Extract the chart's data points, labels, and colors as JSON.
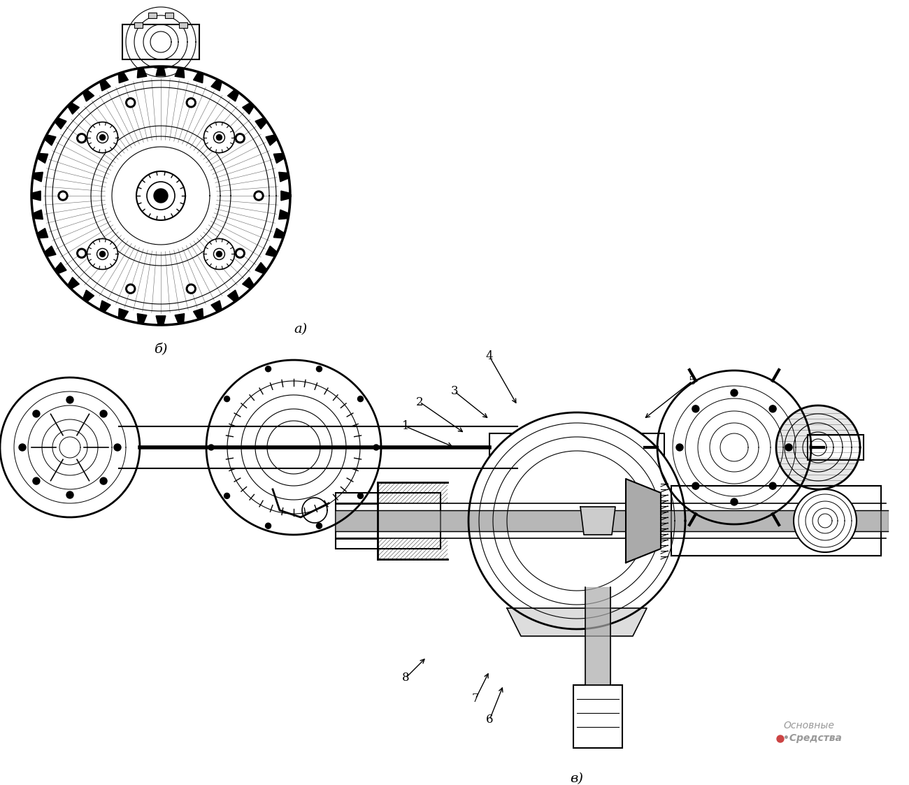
{
  "background_color": "#ffffff",
  "fig_width": 13.0,
  "fig_height": 11.23,
  "labels": {
    "a": "а)",
    "b": "б)",
    "v": "в)"
  },
  "numbers": [
    "1",
    "2",
    "3",
    "4",
    "5",
    "6",
    "7",
    "8"
  ],
  "watermark_line1": "Основные",
  "watermark_line2": "•Средства",
  "watermark_color": "#999999",
  "watermark_dot_color": "#cc4444"
}
